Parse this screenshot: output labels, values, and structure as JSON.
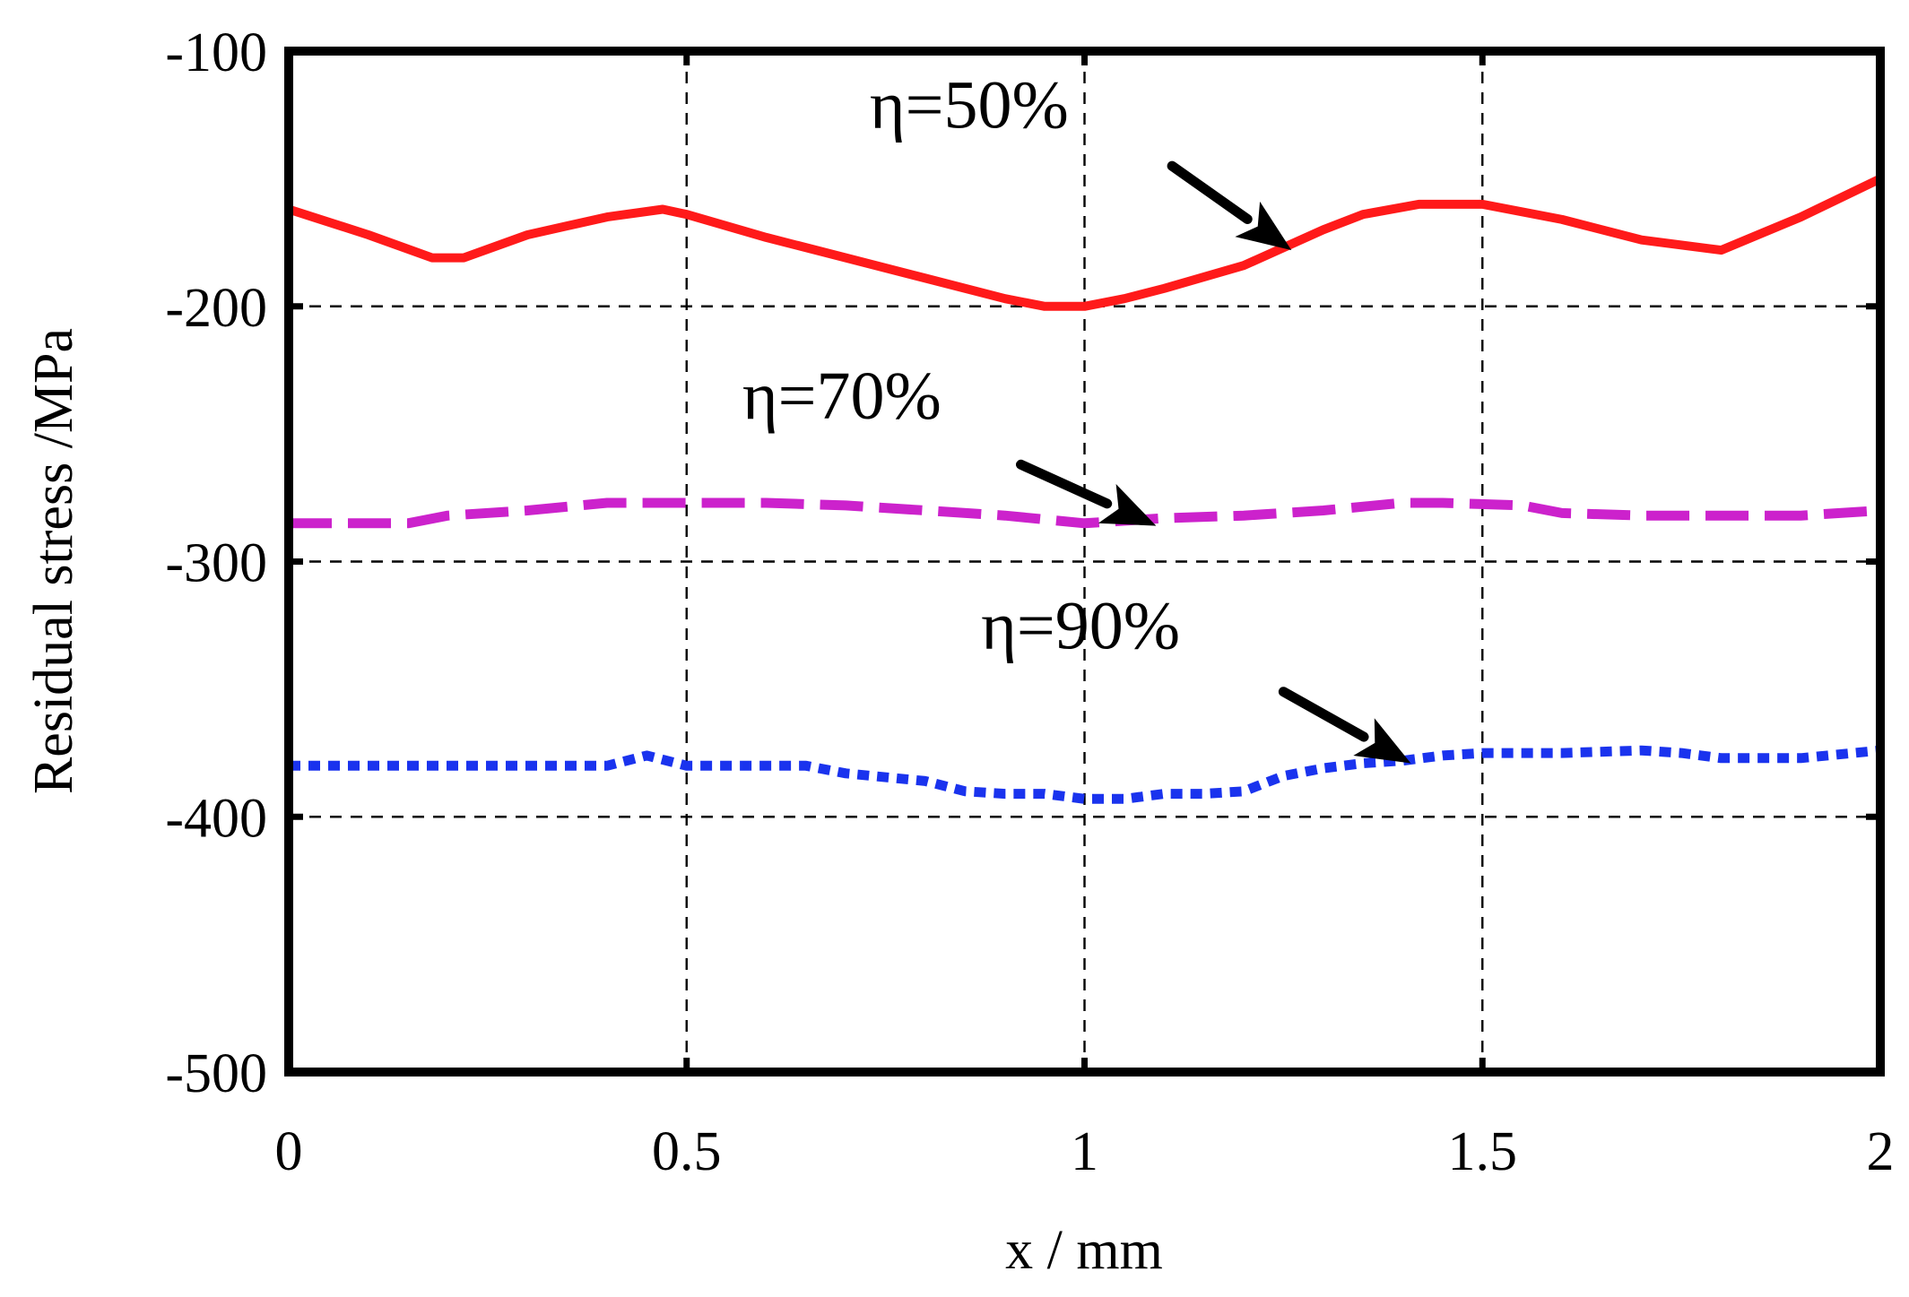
{
  "chart_data": {
    "type": "line",
    "title": "",
    "xlabel": "x / mm",
    "ylabel": "Residual stress /MPa",
    "xlim": [
      0,
      2
    ],
    "ylim": [
      -500,
      -100
    ],
    "xticks": [
      0,
      0.5,
      1,
      1.5,
      2
    ],
    "xtick_labels": [
      "0",
      "0.5",
      "1",
      "1.5",
      "2"
    ],
    "yticks": [
      -100,
      -200,
      -300,
      -400,
      -500
    ],
    "ytick_labels": [
      "-100",
      "-200",
      "-300",
      "-400",
      "-500"
    ],
    "grid": true,
    "series": [
      {
        "name": "η=50%",
        "color": "#ff1a1a",
        "style": "solid",
        "x": [
          0,
          0.1,
          0.18,
          0.22,
          0.3,
          0.4,
          0.47,
          0.5,
          0.6,
          0.7,
          0.8,
          0.9,
          0.95,
          1.0,
          1.05,
          1.1,
          1.2,
          1.3,
          1.35,
          1.42,
          1.5,
          1.6,
          1.7,
          1.8,
          1.9,
          2.0
        ],
        "y": [
          -162,
          -172,
          -181,
          -181,
          -172,
          -165,
          -162,
          -164,
          -173,
          -181,
          -189,
          -197,
          -200,
          -200,
          -197,
          -193,
          -184,
          -170,
          -164,
          -160,
          -160,
          -166,
          -174,
          -178,
          -165,
          -150
        ]
      },
      {
        "name": "η=70%",
        "color": "#cc22cc",
        "style": "dashed",
        "x": [
          0,
          0.15,
          0.2,
          0.3,
          0.4,
          0.5,
          0.6,
          0.7,
          0.8,
          0.9,
          1.0,
          1.1,
          1.2,
          1.3,
          1.4,
          1.45,
          1.55,
          1.6,
          1.7,
          1.8,
          1.9,
          2.0
        ],
        "y": [
          -285,
          -285,
          -282,
          -280,
          -277,
          -277,
          -277,
          -278,
          -280,
          -282,
          -285,
          -283,
          -282,
          -280,
          -277,
          -277,
          -278,
          -281,
          -282,
          -282,
          -282,
          -280
        ]
      },
      {
        "name": "η=90%",
        "color": "#1a33ee",
        "style": "dotted",
        "x": [
          0,
          0.1,
          0.2,
          0.3,
          0.4,
          0.45,
          0.5,
          0.55,
          0.6,
          0.65,
          0.7,
          0.8,
          0.85,
          0.9,
          0.95,
          1.0,
          1.05,
          1.1,
          1.15,
          1.2,
          1.25,
          1.3,
          1.35,
          1.4,
          1.45,
          1.5,
          1.6,
          1.7,
          1.75,
          1.8,
          1.9,
          2.0
        ],
        "y": [
          -380,
          -380,
          -380,
          -380,
          -380,
          -376,
          -380,
          -380,
          -380,
          -380,
          -383,
          -386,
          -390,
          -391,
          -391,
          -393,
          -393,
          -391,
          -391,
          -390,
          -384,
          -381,
          -379,
          -378,
          -376,
          -375,
          -375,
          -374,
          -375,
          -377,
          -377,
          -374
        ]
      }
    ],
    "annotations": [
      {
        "text": "η=50%",
        "series": 0,
        "target_x": 1.26,
        "target_y": -178,
        "label_x": 0.73,
        "label_y": -130,
        "tail_x": 1.11,
        "tail_y": -145
      },
      {
        "text": "η=70%",
        "series": 1,
        "target_x": 1.09,
        "target_y": -286,
        "label_x": 0.57,
        "label_y": -244,
        "tail_x": 0.92,
        "tail_y": -262
      },
      {
        "text": "η=90%",
        "series": 2,
        "target_x": 1.41,
        "target_y": -379,
        "label_x": 0.87,
        "label_y": -334,
        "tail_x": 1.25,
        "tail_y": -351
      }
    ]
  }
}
